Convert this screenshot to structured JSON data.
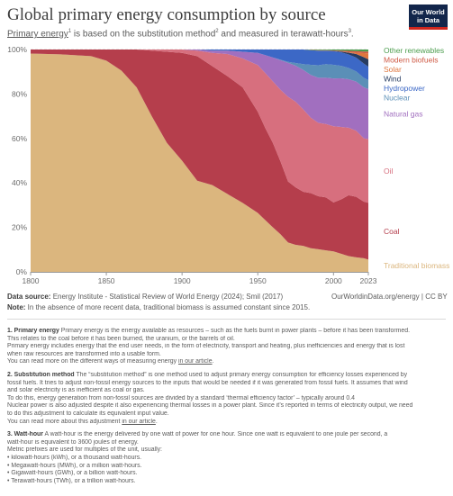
{
  "header": {
    "title": "Global primary energy consumption by source",
    "subtitle_a": "Primary energy",
    "subtitle_sup1": "1",
    "subtitle_b": " is based on the substitution method",
    "subtitle_sup2": "2",
    "subtitle_c": " and measured in terawatt-hours",
    "subtitle_sup3": "3",
    "subtitle_d": ".",
    "logo_line1": "Our World",
    "logo_line2": "in Data",
    "logo_color": "#12264b",
    "logo_accent": "#ce261e"
  },
  "chart_data": {
    "type": "area",
    "stacked": true,
    "normalized": true,
    "x": [
      1800,
      1820,
      1840,
      1850,
      1860,
      1870,
      1880,
      1890,
      1900,
      1910,
      1920,
      1930,
      1940,
      1950,
      1955,
      1960,
      1965,
      1970,
      1975,
      1980,
      1985,
      1990,
      1995,
      2000,
      2005,
      2010,
      2015,
      2020,
      2023
    ],
    "x_ticks": [
      "1800",
      "1850",
      "1900",
      "1950",
      "2000",
      "2023"
    ],
    "x_tick_values": [
      1800,
      1850,
      1900,
      1950,
      2000,
      2023
    ],
    "y_ticks": [
      "0%",
      "20%",
      "40%",
      "60%",
      "80%",
      "100%"
    ],
    "y_tick_values": [
      0,
      20,
      40,
      60,
      80,
      100
    ],
    "ylim": [
      0,
      100
    ],
    "grid": "horizontal dashed",
    "legend": "right, labels beside the series",
    "series": [
      {
        "name": "Traditional biomass",
        "color": "#dbb67e",
        "values": [
          98.2,
          97.8,
          97.0,
          95.0,
          90.5,
          83.0,
          70.0,
          58.0,
          50.0,
          41.0,
          39.0,
          35.0,
          31.0,
          26.5,
          23.0,
          19.5,
          16.5,
          13.0,
          12.0,
          11.5,
          10.5,
          10.0,
          9.5,
          9.0,
          8.0,
          7.0,
          6.5,
          6.0,
          5.5
        ]
      },
      {
        "name": "Coal",
        "color": "#b53e4c",
        "values": [
          1.8,
          2.2,
          3.0,
          5.0,
          9.5,
          17.0,
          29.5,
          41.0,
          48.5,
          56.0,
          53.5,
          53.0,
          52.0,
          45.5,
          41.0,
          37.0,
          32.0,
          27.0,
          25.5,
          24.0,
          24.5,
          23.5,
          23.5,
          21.5,
          24.0,
          27.0,
          27.0,
          25.0,
          25.5
        ]
      },
      {
        "name": "Oil",
        "color": "#d76f7e",
        "values": [
          0,
          0,
          0,
          0,
          0,
          0,
          0.5,
          1.0,
          1.5,
          2.5,
          6.0,
          10.0,
          13.0,
          21.0,
          24.5,
          27.0,
          31.5,
          37.5,
          38.0,
          36.5,
          33.5,
          32.5,
          32.5,
          33.5,
          32.0,
          30.0,
          29.5,
          28.0,
          28.5
        ]
      },
      {
        "name": "Natural gas",
        "color": "#a16fbf",
        "values": [
          0,
          0,
          0,
          0,
          0,
          0,
          0,
          0,
          0,
          0.5,
          1.0,
          1.5,
          3.0,
          5.5,
          8.0,
          10.5,
          13.0,
          15.0,
          16.0,
          17.5,
          19.0,
          20.0,
          20.5,
          21.0,
          21.5,
          21.5,
          22.0,
          22.5,
          22.5
        ]
      },
      {
        "name": "Nuclear",
        "color": "#5b8fb7",
        "values": [
          0,
          0,
          0,
          0,
          0,
          0,
          0,
          0,
          0,
          0,
          0,
          0,
          0,
          0,
          0,
          0,
          0.2,
          0.4,
          1.2,
          2.5,
          4.5,
          5.5,
          6.0,
          6.0,
          5.5,
          5.0,
          4.5,
          4.2,
          4.0
        ]
      },
      {
        "name": "Hydropower",
        "color": "#3c68c6",
        "values": [
          0,
          0,
          0,
          0,
          0,
          0,
          0,
          0,
          0,
          0,
          0.5,
          0.5,
          1.0,
          1.5,
          2.5,
          3.5,
          4.5,
          5.5,
          6.0,
          6.5,
          6.5,
          6.5,
          6.0,
          6.0,
          6.0,
          6.0,
          6.2,
          6.3,
          6.0
        ]
      },
      {
        "name": "Wind",
        "color": "#273c61",
        "values": [
          0,
          0,
          0,
          0,
          0,
          0,
          0,
          0,
          0,
          0,
          0,
          0,
          0,
          0,
          0,
          0,
          0,
          0,
          0,
          0,
          0,
          0,
          0,
          0.1,
          0.3,
          0.8,
          1.6,
          2.8,
          3.3
        ]
      },
      {
        "name": "Solar",
        "color": "#df763e",
        "values": [
          0,
          0,
          0,
          0,
          0,
          0,
          0,
          0,
          0,
          0,
          0,
          0,
          0,
          0,
          0,
          0,
          0,
          0,
          0,
          0,
          0,
          0,
          0,
          0,
          0,
          0.2,
          0.6,
          1.8,
          2.7
        ]
      },
      {
        "name": "Modern biofuels",
        "color": "#cf5a45",
        "values": [
          0,
          0,
          0,
          0,
          0,
          0,
          0,
          0,
          0,
          0,
          0,
          0,
          0,
          0,
          0,
          0,
          0,
          0,
          0,
          0,
          0.1,
          0.2,
          0.2,
          0.2,
          0.4,
          0.6,
          0.7,
          0.7,
          0.8
        ]
      },
      {
        "name": "Other renewables",
        "color": "#4c9d4e",
        "values": [
          0,
          0,
          0,
          0,
          0,
          0,
          0,
          0,
          0,
          0,
          0,
          0,
          0,
          0,
          0,
          0,
          0,
          0,
          0,
          0,
          0.2,
          0.3,
          0.3,
          0.4,
          0.5,
          0.6,
          0.7,
          0.9,
          0.9
        ]
      }
    ]
  },
  "footer": {
    "source_label": "Data source:",
    "source_text": " Energy Institute - Statistical Review of World Energy (2024); Smil (2017)",
    "url": "OurWorldinData.org/energy | CC BY",
    "note_label": "Note:",
    "note_text": " In the absence of more recent data, traditional biomass is assumed constant since 2015."
  },
  "notes": {
    "n1_head": "1. Primary energy",
    "n1_l1": " Primary energy is the energy available as resources – such as the fuels burnt in power plants – before it has been transformed.",
    "n1_l2": "This relates to the coal before it has been burned, the uranium, or the barrels of oil.",
    "n1_l3": "Primary energy includes energy that the end user needs, in the form of electricity, transport and heating, plus inefficiencies and energy that is lost",
    "n1_l4": "when raw resources are transformed into a usable form.",
    "n1_l5a": "You can read more on the different ways of measuring energy ",
    "n1_l5b": "in our article",
    "n1_l5c": ".",
    "n2_head": "2. Substitution method",
    "n2_l1": " The “substitution method” is one method used to adjust primary energy consumption for efficiency losses experienced by",
    "n2_l2": "fossil fuels. It tries to adjust non-fossil energy sources to the inputs that would be needed if it was generated from fossil fuels. It assumes that wind",
    "n2_l3": "and solar electricity is as inefficient as coal or gas.",
    "n2_l4": "To do this, energy generation from non-fossil sources are divided by a standard ‘thermal efficiency factor’ – typically around 0.4",
    "n2_l5": "Nuclear power is also adjusted despite it also experiencing thermal losses in a power plant. Since it’s reported in terms of electricity output, we need",
    "n2_l6": "to do this adjustment to calculate its equivalent input value.",
    "n2_l7a": "You can read more about this adjustment ",
    "n2_l7b": "in our article",
    "n2_l7c": ".",
    "n3_head": "3. Watt-hour",
    "n3_l1": " A watt-hour is the energy delivered by one watt of power for one hour. Since one watt is equivalent to one joule per second, a",
    "n3_l2": "watt-hour is equivalent to 3600 joules of energy.",
    "n3_l3": "Metric prefixes are used for multiples of the unit, usually:",
    "n3_l4": "• kilowatt-hours (kWh), or a thousand watt-hours.",
    "n3_l5": "• Megawatt-hours (MWh), or a million watt-hours.",
    "n3_l6": "• Gigawatt-hours (GWh), or a billion watt-hours.",
    "n3_l7": "• Terawatt-hours (TWh), or a trillion watt-hours."
  }
}
